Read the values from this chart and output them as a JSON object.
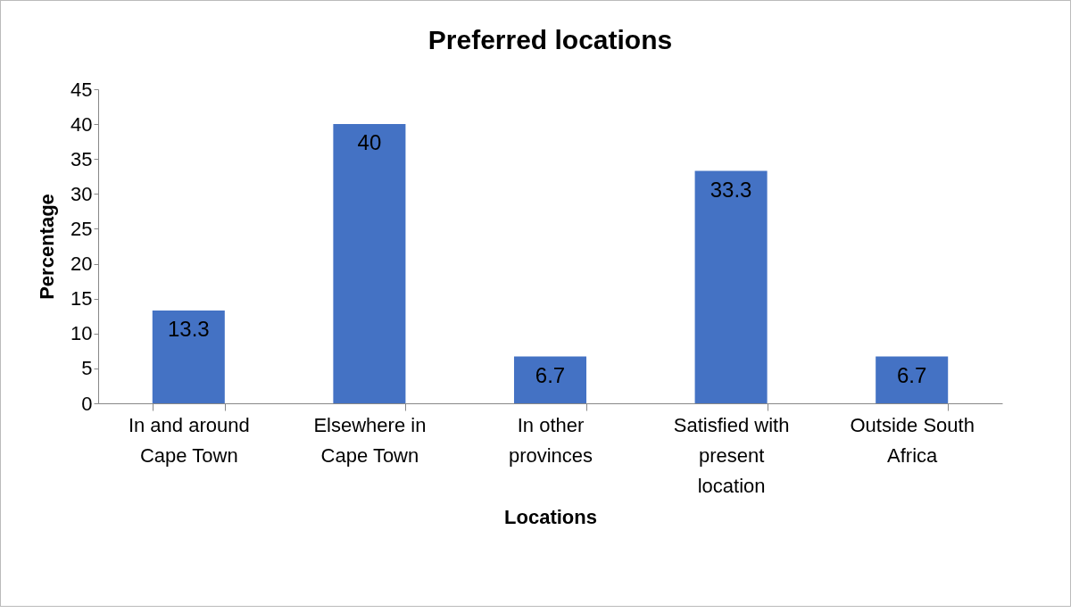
{
  "chart_data": {
    "type": "bar",
    "title": "Preferred locations",
    "xlabel": "Locations",
    "ylabel": "Percentage",
    "categories": [
      "In and around Cape Town",
      "Elsewhere in Cape Town",
      "In other provinces",
      "Satisfied with present location",
      "Outside South Africa"
    ],
    "values": [
      13.3,
      40,
      6.7,
      33.3,
      6.7
    ],
    "color": "#4472c4",
    "ylim": [
      0,
      45
    ],
    "yticks": [
      0,
      5,
      10,
      15,
      20,
      25,
      30,
      35,
      40,
      45
    ],
    "grid": false,
    "data_labels": true
  }
}
